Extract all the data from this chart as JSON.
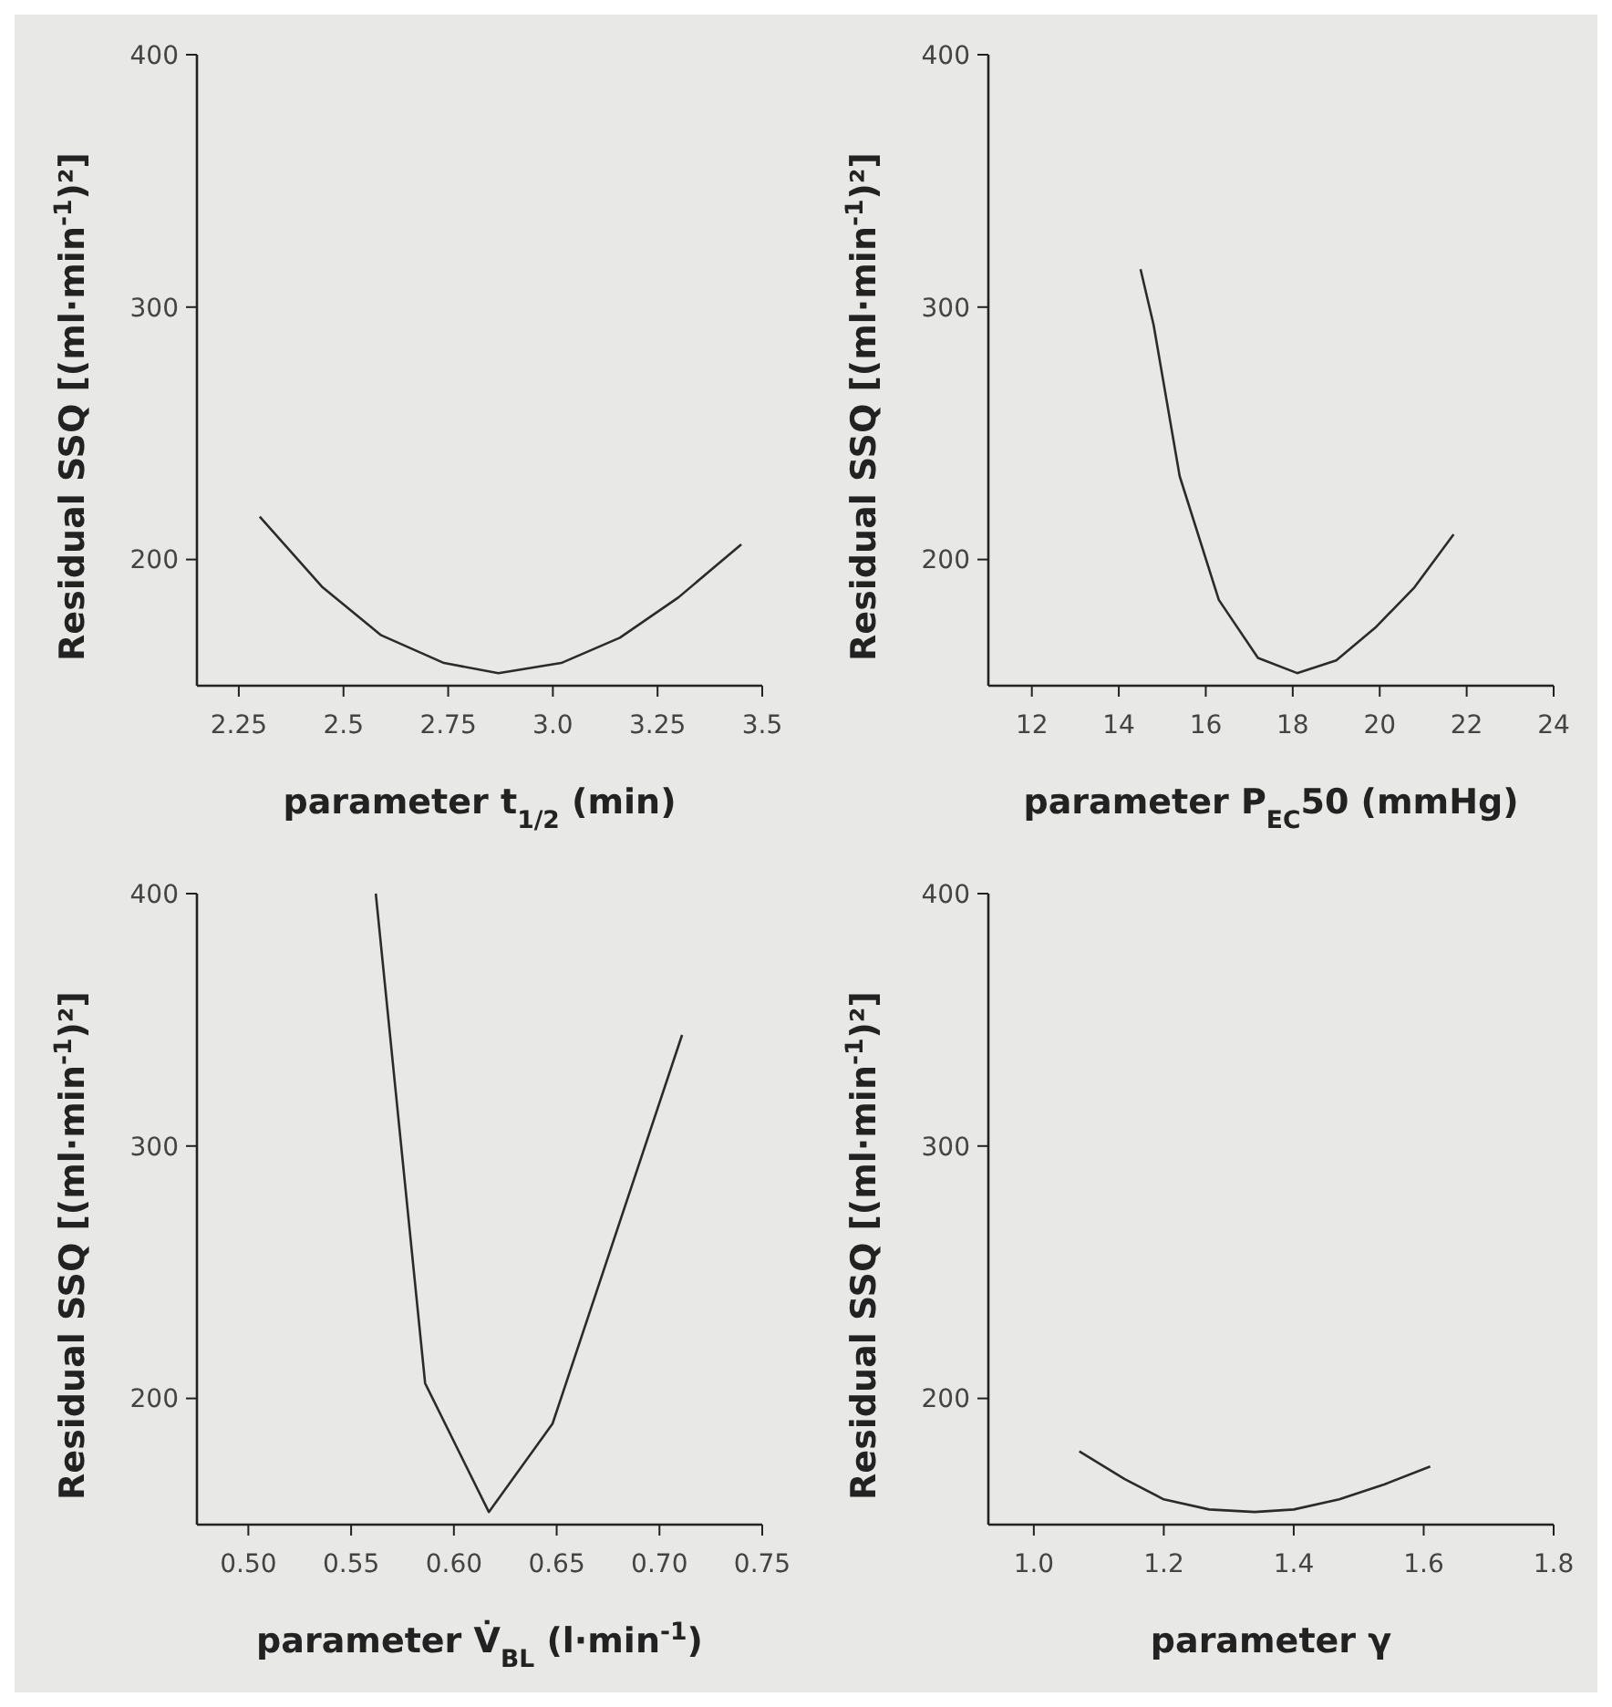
{
  "chart_data": [
    {
      "type": "line",
      "xlabel": "parameter t$_{1/2}$ (min)",
      "ylabel": "Residual SSQ [(ml·min$^{-1}$)²]",
      "color": "#2b2b2b",
      "x": [
        2.3,
        2.45,
        2.59,
        2.74,
        2.87,
        3.02,
        3.16,
        3.3,
        3.45
      ],
      "values": [
        217,
        189,
        170,
        159,
        155,
        159,
        169,
        185,
        206
      ],
      "xlim": [
        2.15,
        3.5
      ],
      "ylim": [
        150,
        400
      ],
      "xticks": [
        2.25,
        2.5,
        2.75,
        {
          "value": 3,
          "label": "3.0"
        },
        3.25,
        3.5
      ],
      "yticks": [
        200,
        300,
        400
      ]
    },
    {
      "type": "line",
      "xlabel": "parameter P$_{EC}$50 (mmHg)",
      "ylabel": "Residual SSQ [(ml·min$^{-1}$)²]",
      "color": "#2b2b2b",
      "x": [
        14.5,
        14.8,
        15.4,
        16.3,
        17.2,
        18.1,
        19,
        19.9,
        20.8,
        21.7
      ],
      "values": [
        315,
        293,
        233,
        184,
        161,
        155,
        160,
        173,
        189,
        210
      ],
      "xlim": [
        11,
        24
      ],
      "ylim": [
        150,
        400
      ],
      "xticks": [
        12,
        14,
        16,
        18,
        20,
        22,
        24
      ],
      "yticks": [
        200,
        300,
        400
      ]
    },
    {
      "type": "line",
      "xlabel": "parameter V̇$_{BL}$ (l·min$^{-1}$)",
      "ylabel": "Residual SSQ [(ml·min$^{-1}$)²]",
      "color": "#2b2b2b",
      "x": [
        0.562,
        0.586,
        0.617,
        0.648,
        0.711
      ],
      "values": [
        400,
        206,
        155,
        190,
        344
      ],
      "xlim": [
        0.475,
        0.75
      ],
      "ylim": [
        150,
        400
      ],
      "xticks": [
        {
          "value": 0.5,
          "label": "0.50"
        },
        0.55,
        {
          "value": 0.6,
          "label": "0.60"
        },
        0.65,
        {
          "value": 0.7,
          "label": "0.70"
        },
        0.75
      ],
      "yticks": [
        200,
        300,
        400
      ]
    },
    {
      "type": "line",
      "xlabel": "parameter γ",
      "ylabel": "Residual SSQ [(ml·min$^{-1}$)²]",
      "color": "#2b2b2b",
      "x": [
        1.07,
        1.14,
        1.2,
        1.27,
        1.34,
        1.4,
        1.47,
        1.54,
        1.61
      ],
      "values": [
        179,
        168,
        160,
        156,
        155,
        156,
        160,
        166,
        173
      ],
      "xlim": [
        0.93,
        1.8
      ],
      "ylim": [
        150,
        400
      ],
      "xticks": [
        {
          "value": 1,
          "label": "1.0"
        },
        1.2,
        1.4,
        1.6,
        1.8
      ],
      "yticks": [
        200,
        300,
        400
      ]
    }
  ]
}
